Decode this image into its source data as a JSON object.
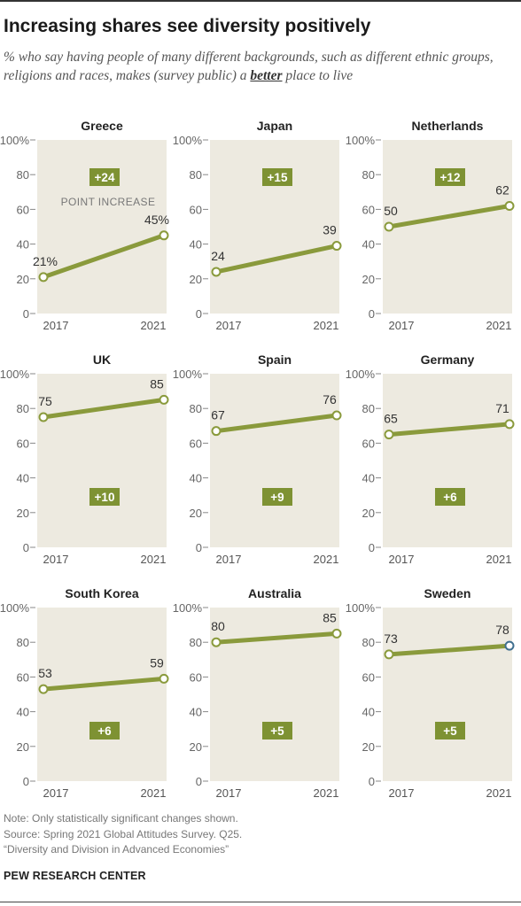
{
  "header": {
    "title": "Increasing shares see diversity positively",
    "subtitle_pre": "% who say having people of many different backgrounds, such as different ethnic groups, religions and races, makes (survey public) a ",
    "subtitle_emph": "better",
    "subtitle_post": " place to live"
  },
  "chart_data": {
    "type": "line",
    "ylim": [
      0,
      100
    ],
    "yticks": [
      "100%",
      "80",
      "60",
      "40",
      "20",
      "0"
    ],
    "xticks": [
      "2017",
      "2021"
    ],
    "annotation_label": "POINT INCREASE",
    "panels": [
      {
        "country": "Greece",
        "v2017": 21,
        "v2021": 45,
        "label2017": "21%",
        "label2021": "45%",
        "change": "+24"
      },
      {
        "country": "Japan",
        "v2017": 24,
        "v2021": 39,
        "label2017": "24",
        "label2021": "39",
        "change": "+15"
      },
      {
        "country": "Netherlands",
        "v2017": 50,
        "v2021": 62,
        "label2017": "50",
        "label2021": "62",
        "change": "+12"
      },
      {
        "country": "UK",
        "v2017": 75,
        "v2021": 85,
        "label2017": "75",
        "label2021": "85",
        "change": "+10"
      },
      {
        "country": "Spain",
        "v2017": 67,
        "v2021": 76,
        "label2017": "67",
        "label2021": "76",
        "change": "+9"
      },
      {
        "country": "Germany",
        "v2017": 65,
        "v2021": 71,
        "label2017": "65",
        "label2021": "71",
        "change": "+6"
      },
      {
        "country": "South Korea",
        "v2017": 53,
        "v2021": 59,
        "label2017": "53",
        "label2021": "59",
        "change": "+6"
      },
      {
        "country": "Australia",
        "v2017": 80,
        "v2021": 85,
        "label2017": "80",
        "label2021": "85",
        "change": "+5"
      },
      {
        "country": "Sweden",
        "v2017": 73,
        "v2021": 78,
        "label2017": "73",
        "label2021": "78",
        "change": "+5"
      }
    ]
  },
  "colors": {
    "panel_bg": "#edeae0",
    "line": "#8a9a3c",
    "badge": "#7e9233",
    "badge_text": "#ffffff",
    "marker_fill": "#ffffff",
    "highlight_marker": "#3f6f8f"
  },
  "footer": {
    "note": "Note: Only statistically significant changes shown.",
    "source": "Source: Spring 2021 Global Attitudes Survey. Q25.",
    "report": "“Diversity and Division in Advanced Economies”",
    "brand": "PEW RESEARCH CENTER"
  }
}
